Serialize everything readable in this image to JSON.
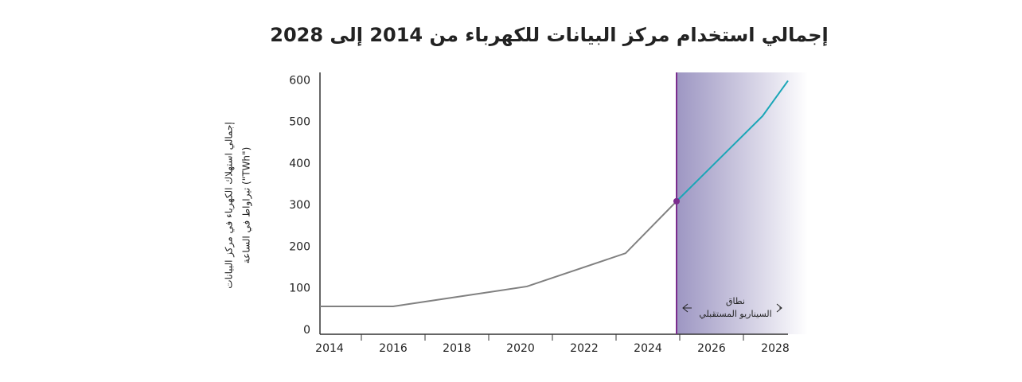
{
  "chart_data": {
    "type": "line",
    "title": "إجمالي استخدام مركز البيانات للكهرباء من 2014 إلى 2028",
    "ylabel_lines": [
      "إجمالي استهلاك الكهرباء في مركز البيانات",
      "(\"TWh\") تيراواط في الساعة"
    ],
    "xlim": [
      2013.7,
      2028.4
    ],
    "xticks": [
      2014,
      2016,
      2018,
      2020,
      2022,
      2024,
      2026,
      2028
    ],
    "minor_xticks": [
      2015,
      2017,
      2019,
      2021,
      2023,
      2025,
      2027
    ],
    "ylim": [
      -10,
      620
    ],
    "yticks": [
      0,
      100,
      200,
      300,
      400,
      500,
      600
    ],
    "series": [
      {
        "color": "#808080",
        "x": [
          2013.7,
          2016,
          2020.2,
          2023.3,
          2024.9
        ],
        "values": [
          57,
          57,
          105,
          185,
          310
        ]
      },
      {
        "color": "#1aa6b7",
        "x": [
          2024.9,
          2027.6,
          2028.4
        ],
        "values": [
          310,
          515,
          600
        ]
      }
    ],
    "projection_start": 2024.9,
    "projection_color": "#7b2d8e",
    "annotation_lines": [
      "نطاق",
      "السيناريو المستقبلي"
    ]
  }
}
